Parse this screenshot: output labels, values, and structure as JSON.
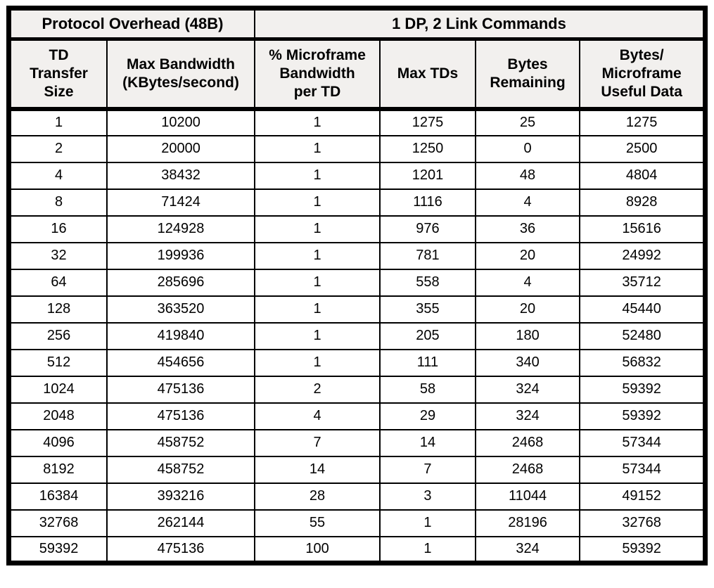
{
  "table": {
    "group_headers": [
      {
        "label": "Protocol Overhead (48B)",
        "colspan": 2
      },
      {
        "label": "1 DP, 2 Link Commands",
        "colspan": 4
      }
    ],
    "columns": [
      "TD\nTransfer\nSize",
      "Max Bandwidth\n(KBytes/second)",
      "% Microframe\nBandwidth\nper TD",
      "Max TDs",
      "Bytes\nRemaining",
      "Bytes/\nMicroframe\nUseful Data"
    ],
    "rows": [
      [
        1,
        10200,
        1,
        1275,
        25,
        1275
      ],
      [
        2,
        20000,
        1,
        1250,
        0,
        2500
      ],
      [
        4,
        38432,
        1,
        1201,
        48,
        4804
      ],
      [
        8,
        71424,
        1,
        1116,
        4,
        8928
      ],
      [
        16,
        124928,
        1,
        976,
        36,
        15616
      ],
      [
        32,
        199936,
        1,
        781,
        20,
        24992
      ],
      [
        64,
        285696,
        1,
        558,
        4,
        35712
      ],
      [
        128,
        363520,
        1,
        355,
        20,
        45440
      ],
      [
        256,
        419840,
        1,
        205,
        180,
        52480
      ],
      [
        512,
        454656,
        1,
        111,
        340,
        56832
      ],
      [
        1024,
        475136,
        2,
        58,
        324,
        59392
      ],
      [
        2048,
        475136,
        4,
        29,
        324,
        59392
      ],
      [
        4096,
        458752,
        7,
        14,
        2468,
        57344
      ],
      [
        8192,
        458752,
        14,
        7,
        2468,
        57344
      ],
      [
        16384,
        393216,
        28,
        3,
        11044,
        49152
      ],
      [
        32768,
        262144,
        55,
        1,
        28196,
        32768
      ],
      [
        59392,
        475136,
        100,
        1,
        324,
        59392
      ]
    ]
  },
  "colors": {
    "header_bg": "#f2f0ee",
    "border": "#000000",
    "row_bg": "#ffffff"
  }
}
